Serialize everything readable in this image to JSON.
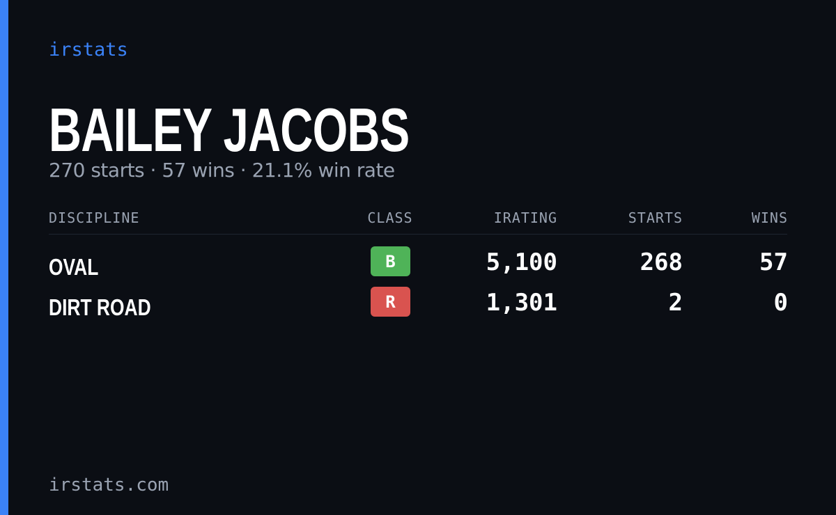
{
  "brand": "irstats",
  "name": "BAILEY JACOBS",
  "summary": "270 starts · 57 wins · 21.1% win rate",
  "table": {
    "headers": [
      "DISCIPLINE",
      "CLASS",
      "IRATING",
      "STARTS",
      "WINS"
    ],
    "rows": [
      {
        "discipline": "OVAL",
        "class": "B",
        "class_color": "#4fb358",
        "irating": "5,100",
        "starts": "268",
        "wins": "57"
      },
      {
        "discipline": "DIRT ROAD",
        "class": "R",
        "class_color": "#d9534f",
        "irating": "1,301",
        "starts": "2",
        "wins": "0"
      }
    ]
  },
  "footer": "irstats.com"
}
